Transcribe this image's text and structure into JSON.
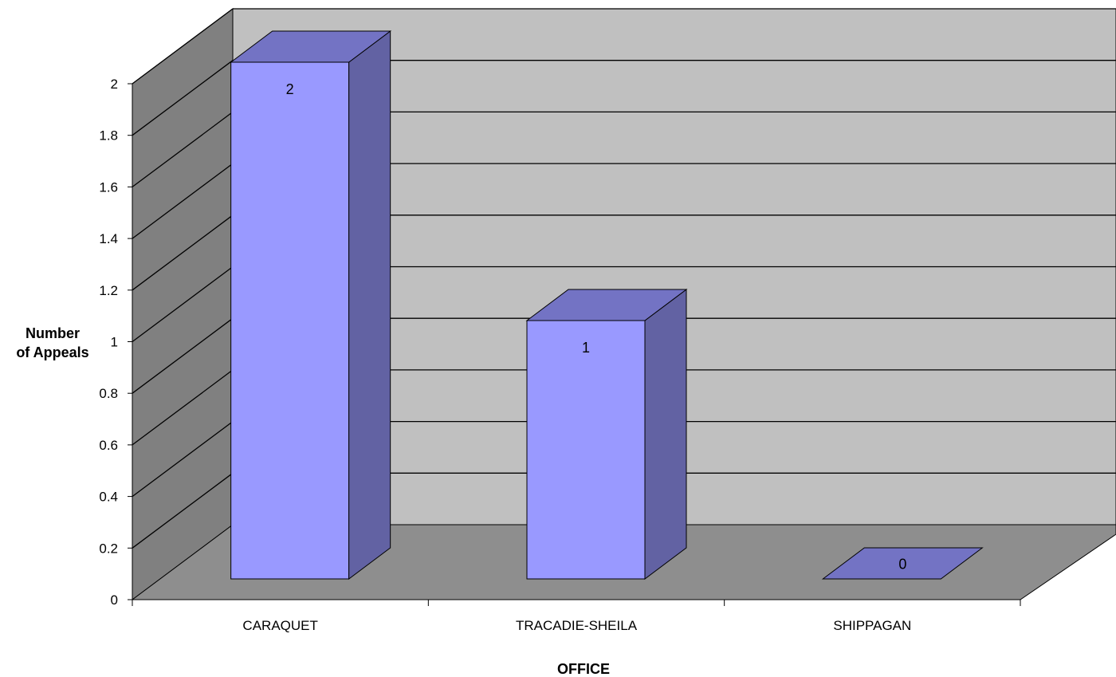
{
  "chart_data": {
    "type": "bar",
    "categories": [
      "CARAQUET",
      "TRACADIE-SHEILA",
      "SHIPPAGAN"
    ],
    "values": [
      2,
      1,
      0
    ],
    "data_labels": [
      "2",
      "1",
      "0"
    ],
    "title": "",
    "xlabel": "OFFICE",
    "ylabel_lines": [
      "Number",
      "of Appeals"
    ],
    "ylim": [
      0,
      2
    ],
    "yticks": [
      "0",
      "0.2",
      "0.4",
      "0.6",
      "0.8",
      "1",
      "1.2",
      "1.4",
      "1.6",
      "1.8",
      "2"
    ],
    "grid": true,
    "style": "3d-column"
  },
  "colors": {
    "bar_front": "#9999FF",
    "bar_top": "#7373C4",
    "bar_side": "#6262A3",
    "back_wall": "#C0C0C0",
    "side_wall": "#808080",
    "floor": "#8E8E8E"
  }
}
